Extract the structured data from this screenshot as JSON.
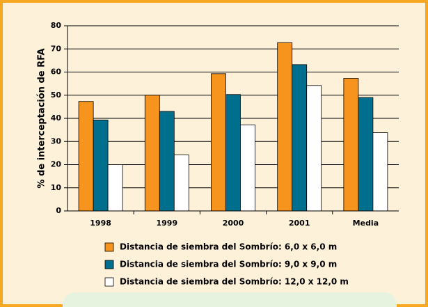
{
  "chart_data": {
    "type": "bar",
    "ylabel": "% de interceptación de RFA",
    "categories": [
      "1998",
      "1999",
      "2000",
      "2001",
      "Media"
    ],
    "series": [
      {
        "name": "Distancia de siembra del Sombrío: 6,0 x 6,0 m",
        "color": "#f7941d",
        "values": [
          47.3,
          50,
          59.3,
          72.7,
          57.3
        ]
      },
      {
        "name": "Distancia de siembra del Sombrío: 9,0 x 9,0 m",
        "color": "#006f8e",
        "values": [
          39.3,
          43,
          50.3,
          63.2,
          49
        ]
      },
      {
        "name": "Distancia de siembra del Sombrío: 12,0 x 12,0 m",
        "color": "#ffffff",
        "values": [
          20,
          24.2,
          37.2,
          54.2,
          33.8
        ]
      }
    ],
    "ylim": [
      0,
      80
    ],
    "yticks": [
      0,
      10,
      20,
      30,
      40,
      50,
      60,
      70,
      80
    ],
    "grid": true,
    "legend": "bottom"
  }
}
